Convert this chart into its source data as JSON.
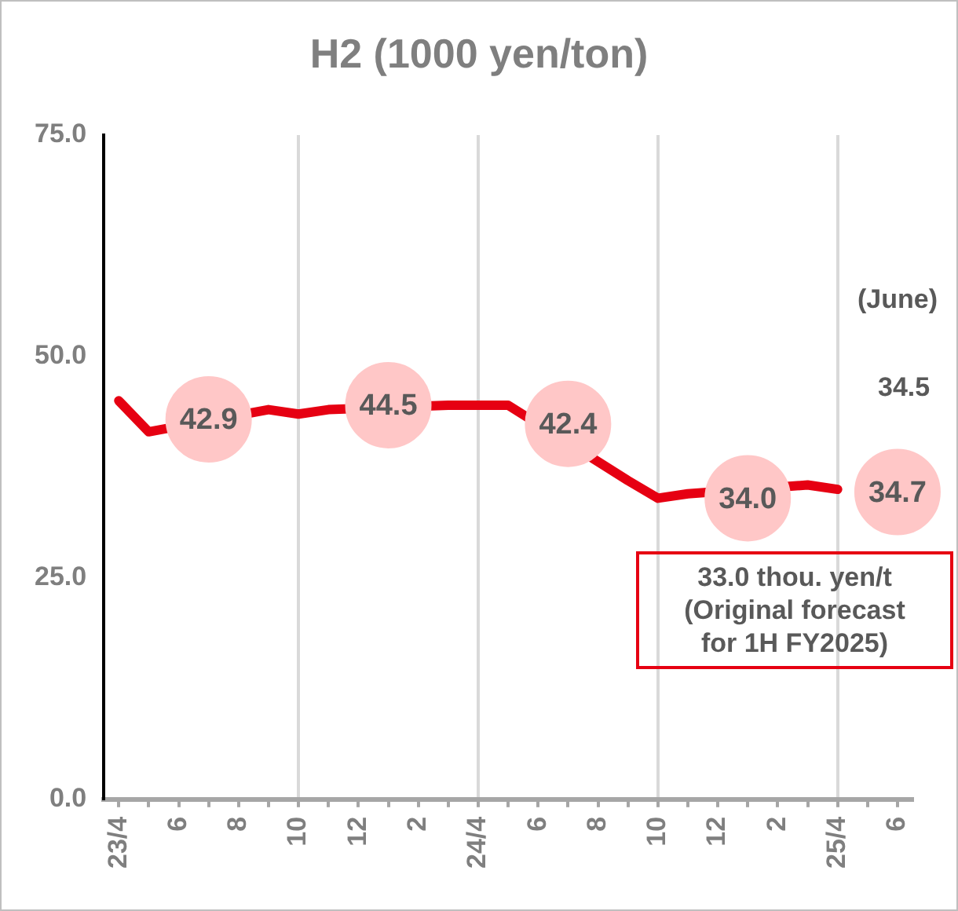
{
  "chart_data": {
    "type": "line",
    "title": "H2 (1000 yen/ton)",
    "categories": [
      "23/4",
      null,
      "6",
      null,
      "8",
      null,
      "10",
      null,
      "12",
      null,
      "2",
      null,
      "24/4",
      null,
      "6",
      null,
      "8",
      null,
      "10",
      null,
      "12",
      null,
      "2",
      null,
      "25/4",
      null,
      "6"
    ],
    "series": [
      {
        "color": "#e60012",
        "marker": "none",
        "values": [
          45.0,
          41.5,
          null,
          null,
          null,
          44.0,
          43.5,
          44.0,
          null,
          null,
          null,
          44.5,
          44.5,
          44.5,
          null,
          null,
          null,
          36.0,
          34.0,
          34.5,
          null,
          null,
          null,
          35.5,
          35.0,
          null,
          null
        ]
      },
      {
        "type": "scatter",
        "color": "#ffc7c7",
        "marker": "circle",
        "values": [
          null,
          null,
          null,
          42.9,
          null,
          null,
          null,
          null,
          null,
          44.5,
          null,
          null,
          null,
          null,
          null,
          42.4,
          null,
          null,
          null,
          null,
          null,
          34.0,
          null,
          null,
          null,
          null,
          34.7
        ],
        "value_labels": [
          null,
          null,
          null,
          "42.9",
          null,
          null,
          null,
          null,
          null,
          "44.5",
          null,
          null,
          null,
          null,
          null,
          "42.4",
          null,
          null,
          null,
          null,
          null,
          "34.0",
          null,
          null,
          null,
          null,
          "34.7"
        ]
      }
    ],
    "ylim": [
      0,
      75
    ],
    "yticks": [
      {
        "value": 0,
        "label": "0.0"
      },
      {
        "value": 25,
        "label": "25.0"
      },
      {
        "value": 50,
        "label": "50.0"
      },
      {
        "value": 75,
        "label": "75.0"
      }
    ],
    "grid": "x",
    "annotations": [
      "(June)",
      "34.5",
      "33.0 thou. yen/t\n(Original forecast\nfor 1H FY2025)"
    ]
  }
}
